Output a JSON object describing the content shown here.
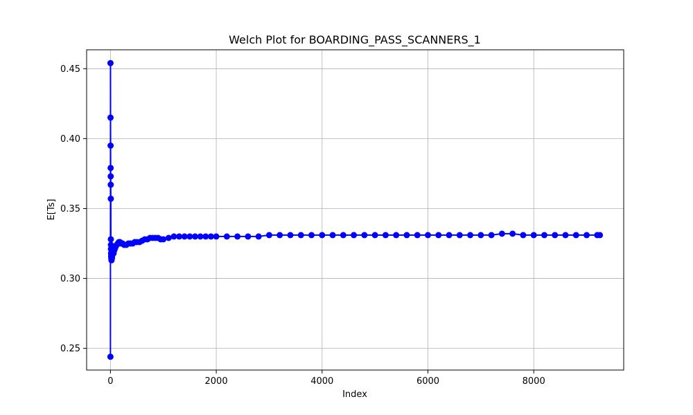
{
  "chart_data": {
    "type": "line",
    "title": "Welch Plot for BOARDING_PASS_SCANNERS_1",
    "xlabel": "Index",
    "ylabel": "E[Ts]",
    "xlim": [
      -450,
      9700
    ],
    "ylim": [
      0.2345,
      0.4635
    ],
    "xticks": [
      0,
      2000,
      4000,
      6000,
      8000
    ],
    "xtick_labels": [
      "0",
      "2000",
      "4000",
      "6000",
      "8000"
    ],
    "yticks": [
      0.25,
      0.3,
      0.35,
      0.4,
      0.45
    ],
    "ytick_labels": [
      "0.25",
      "0.30",
      "0.35",
      "0.40",
      "0.45"
    ],
    "grid": true,
    "series": [
      {
        "color": "#0000ff",
        "marker": "circle",
        "points": [
          [
            0,
            0.244
          ],
          [
            1,
            0.454
          ],
          [
            2,
            0.415
          ],
          [
            3,
            0.395
          ],
          [
            4,
            0.379
          ],
          [
            5,
            0.373
          ],
          [
            6,
            0.367
          ],
          [
            7,
            0.357
          ],
          [
            8,
            0.328
          ],
          [
            9,
            0.324
          ],
          [
            10,
            0.321
          ],
          [
            12,
            0.318
          ],
          [
            14,
            0.316
          ],
          [
            16,
            0.315
          ],
          [
            18,
            0.314
          ],
          [
            20,
            0.313
          ],
          [
            25,
            0.314
          ],
          [
            30,
            0.315
          ],
          [
            40,
            0.317
          ],
          [
            50,
            0.318
          ],
          [
            60,
            0.318
          ],
          [
            70,
            0.32
          ],
          [
            80,
            0.321
          ],
          [
            90,
            0.322
          ],
          [
            100,
            0.323
          ],
          [
            120,
            0.324
          ],
          [
            140,
            0.325
          ],
          [
            160,
            0.326
          ],
          [
            180,
            0.326
          ],
          [
            200,
            0.325
          ],
          [
            230,
            0.325
          ],
          [
            260,
            0.324
          ],
          [
            300,
            0.324
          ],
          [
            340,
            0.325
          ],
          [
            380,
            0.325
          ],
          [
            420,
            0.325
          ],
          [
            460,
            0.326
          ],
          [
            500,
            0.326
          ],
          [
            550,
            0.326
          ],
          [
            600,
            0.327
          ],
          [
            650,
            0.328
          ],
          [
            700,
            0.328
          ],
          [
            750,
            0.329
          ],
          [
            800,
            0.329
          ],
          [
            850,
            0.329
          ],
          [
            900,
            0.329
          ],
          [
            950,
            0.328
          ],
          [
            1000,
            0.328
          ],
          [
            1100,
            0.329
          ],
          [
            1200,
            0.33
          ],
          [
            1300,
            0.33
          ],
          [
            1400,
            0.33
          ],
          [
            1500,
            0.33
          ],
          [
            1600,
            0.33
          ],
          [
            1700,
            0.33
          ],
          [
            1800,
            0.33
          ],
          [
            1900,
            0.33
          ],
          [
            2000,
            0.33
          ],
          [
            2200,
            0.33
          ],
          [
            2400,
            0.33
          ],
          [
            2600,
            0.33
          ],
          [
            2800,
            0.33
          ],
          [
            3000,
            0.331
          ],
          [
            3200,
            0.331
          ],
          [
            3400,
            0.331
          ],
          [
            3600,
            0.331
          ],
          [
            3800,
            0.331
          ],
          [
            4000,
            0.331
          ],
          [
            4200,
            0.331
          ],
          [
            4400,
            0.331
          ],
          [
            4600,
            0.331
          ],
          [
            4800,
            0.331
          ],
          [
            5000,
            0.331
          ],
          [
            5200,
            0.331
          ],
          [
            5400,
            0.331
          ],
          [
            5600,
            0.331
          ],
          [
            5800,
            0.331
          ],
          [
            6000,
            0.331
          ],
          [
            6200,
            0.331
          ],
          [
            6400,
            0.331
          ],
          [
            6600,
            0.331
          ],
          [
            6800,
            0.331
          ],
          [
            7000,
            0.331
          ],
          [
            7200,
            0.331
          ],
          [
            7400,
            0.332
          ],
          [
            7600,
            0.332
          ],
          [
            7800,
            0.331
          ],
          [
            8000,
            0.331
          ],
          [
            8200,
            0.331
          ],
          [
            8400,
            0.331
          ],
          [
            8600,
            0.331
          ],
          [
            8800,
            0.331
          ],
          [
            9000,
            0.331
          ],
          [
            9200,
            0.331
          ],
          [
            9250,
            0.331
          ]
        ]
      }
    ]
  }
}
